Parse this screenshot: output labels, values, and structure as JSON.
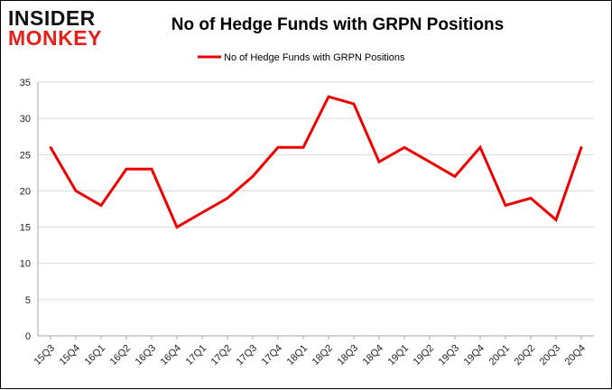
{
  "logo": {
    "line1": "INSIDER",
    "line2": "MONKEY"
  },
  "colors": {
    "line": "#ee0000",
    "grid": "#d9d9d9",
    "axis": "#a6a6a6"
  },
  "chart_data": {
    "type": "line",
    "title": "No of Hedge Funds with GRPN Positions",
    "xlabel": "",
    "ylabel": "",
    "ylim": [
      0,
      35
    ],
    "yticks": [
      0,
      5,
      10,
      15,
      20,
      25,
      30,
      35
    ],
    "grid": true,
    "legend_position": "top-center",
    "categories": [
      "15Q3",
      "15Q4",
      "16Q1",
      "16Q2",
      "16Q3",
      "16Q4",
      "17Q1",
      "17Q2",
      "17Q3",
      "17Q4",
      "18Q1",
      "18Q2",
      "18Q3",
      "18Q4",
      "19Q1",
      "19Q2",
      "19Q3",
      "19Q4",
      "20Q1",
      "20Q2",
      "20Q3",
      "20Q4"
    ],
    "series": [
      {
        "name": "No of Hedge Funds with GRPN Positions",
        "values": [
          26,
          20,
          18,
          23,
          23,
          15,
          17,
          19,
          22,
          26,
          26,
          33,
          32,
          24,
          26,
          24,
          22,
          26,
          18,
          19,
          16,
          26
        ]
      }
    ]
  }
}
